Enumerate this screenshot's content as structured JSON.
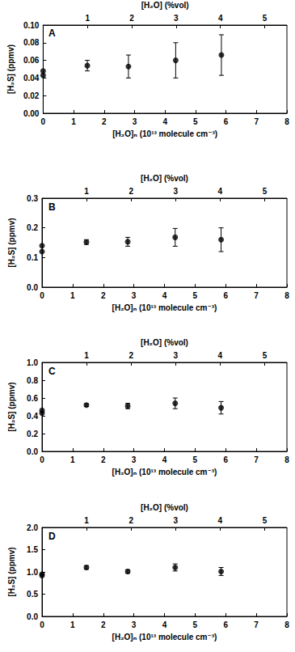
{
  "chart_data": [
    {
      "type": "scatter",
      "annotation": "A",
      "x_label": "[H₂O]ₙ (10¹³ molecule cm⁻³)",
      "x2_label": "[H₂O] (%vol)",
      "y_label": "[H₂S] (ppmv)",
      "x": [
        0,
        0,
        1.45,
        2.8,
        4.35,
        5.85
      ],
      "values": [
        0.043,
        0.048,
        0.054,
        0.053,
        0.06,
        0.066
      ],
      "errors": [
        null,
        null,
        0.006,
        0.013,
        0.02,
        0.023
      ],
      "xlim": [
        0,
        8
      ],
      "xticks": [
        0,
        1,
        2,
        3,
        4,
        5,
        6,
        7,
        8
      ],
      "x2lim": [
        0,
        5.5
      ],
      "x2ticks": [
        1,
        2,
        3,
        4,
        5
      ],
      "ylim": [
        0,
        0.1
      ],
      "yticks": [
        {
          "value": 0,
          "label": "0.00"
        },
        0.02,
        0.04,
        0.06,
        0.08,
        {
          "value": 0.1,
          "label": "0.10"
        }
      ],
      "color": "#000000",
      "marker": "circle",
      "grid": false
    },
    {
      "type": "scatter",
      "annotation": "B",
      "x_label": "[H₂O]ₙ (10¹³ molecule cm⁻³)",
      "x2_label": "[H₂O] (%vol)",
      "y_label": "[H₂S] (ppmv)",
      "x": [
        0,
        0,
        1.45,
        2.8,
        4.35,
        5.85
      ],
      "values": [
        0.12,
        0.14,
        0.152,
        0.153,
        0.168,
        0.16
      ],
      "errors": [
        null,
        null,
        0.008,
        0.015,
        0.03,
        0.04
      ],
      "xlim": [
        0,
        8
      ],
      "xticks": [
        0,
        1,
        2,
        3,
        4,
        5,
        6,
        7,
        8
      ],
      "x2lim": [
        0,
        5.5
      ],
      "x2ticks": [
        1,
        2,
        3,
        4,
        5
      ],
      "ylim": [
        0,
        0.3
      ],
      "yticks": [
        {
          "value": 0,
          "label": "0.0"
        },
        0.1,
        0.2,
        0.3
      ],
      "color": "#000000",
      "marker": "circle",
      "grid": false
    },
    {
      "type": "scatter",
      "annotation": "C",
      "x_label": "[H₂O]ₙ (10¹³ molecule cm⁻³)",
      "x2_label": "[H₂O] (%vol)",
      "y_label": "[H₂S] (ppmv)",
      "x": [
        0,
        0,
        1.45,
        2.8,
        4.35,
        5.85
      ],
      "values": [
        0.43,
        0.46,
        0.52,
        0.51,
        0.54,
        0.49
      ],
      "errors": [
        null,
        null,
        0.015,
        0.03,
        0.06,
        0.07
      ],
      "xlim": [
        0,
        8
      ],
      "xticks": [
        0,
        1,
        2,
        3,
        4,
        5,
        6,
        7,
        8
      ],
      "x2lim": [
        0,
        5.5
      ],
      "x2ticks": [
        1,
        2,
        3,
        4,
        5
      ],
      "ylim": [
        0,
        1
      ],
      "yticks": [
        {
          "value": 0,
          "label": "0.0"
        },
        0.2,
        0.4,
        0.6,
        0.8,
        {
          "value": 1,
          "label": "1.0"
        }
      ],
      "color": "#000000",
      "marker": "circle",
      "grid": false
    },
    {
      "type": "scatter",
      "annotation": "D",
      "x_label": "[H₂O]ₙ (10¹³ molecule cm⁻³)",
      "x2_label": "[H₂O] (%vol)",
      "y_label": "[H₂S] (ppmv)",
      "x": [
        0,
        0,
        1.45,
        2.8,
        4.35,
        5.85
      ],
      "values": [
        0.92,
        0.95,
        1.1,
        1.01,
        1.1,
        1.01
      ],
      "errors": [
        null,
        null,
        0.04,
        0.04,
        0.08,
        0.09
      ],
      "xlim": [
        0,
        8
      ],
      "xticks": [
        0,
        1,
        2,
        3,
        4,
        5,
        6,
        7,
        8
      ],
      "x2lim": [
        0,
        5.5
      ],
      "x2ticks": [
        1,
        2,
        3,
        4,
        5
      ],
      "ylim": [
        0,
        2
      ],
      "yticks": [
        {
          "value": 0,
          "label": "0.0"
        },
        0.5,
        {
          "value": 1,
          "label": "1.0"
        },
        1.5,
        {
          "value": 2,
          "label": "2.0"
        }
      ],
      "color": "#000000",
      "marker": "circle",
      "grid": false
    }
  ]
}
